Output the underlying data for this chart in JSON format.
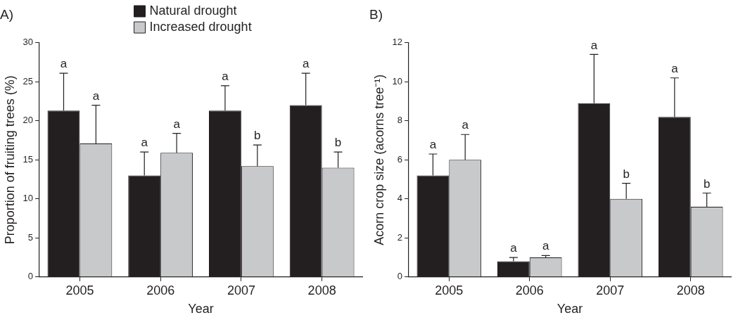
{
  "chart_data": [
    {
      "type": "bar",
      "title": "A)",
      "xlabel": "Year",
      "ylabel": "Proportion of fruiting trees (%)",
      "categories": [
        "2005",
        "2006",
        "2007",
        "2008"
      ],
      "series": [
        {
          "name": "Natural drought",
          "color": "#231f20",
          "values": [
            21.3,
            13.0,
            21.3,
            22.0
          ],
          "errors": [
            [
              21.3,
              26.1
            ],
            [
              13.0,
              16.0
            ],
            [
              21.3,
              24.5
            ],
            [
              22.0,
              26.1
            ]
          ]
        },
        {
          "name": "Increased drought",
          "color": "#c8c9cb",
          "values": [
            17.1,
            15.9,
            14.2,
            14.0
          ],
          "errors": [
            [
              17.1,
              22.0
            ],
            [
              15.9,
              18.4
            ],
            [
              14.2,
              16.9
            ],
            [
              14.0,
              16.0
            ]
          ]
        }
      ],
      "ylim": [
        0,
        30
      ],
      "yticks": [
        0,
        5,
        10,
        15,
        20,
        25,
        30
      ],
      "grid": false,
      "legend": "top",
      "annotations": [
        "a",
        "a",
        "a",
        "a",
        "a",
        "b",
        "a",
        "b"
      ]
    },
    {
      "type": "bar",
      "title": "B)",
      "xlabel": "Year",
      "ylabel": "Acorn crop size (acorns tree⁻¹)",
      "categories": [
        "2005",
        "2006",
        "2007",
        "2008"
      ],
      "series": [
        {
          "color": "#231f20",
          "values": [
            5.2,
            0.8,
            8.9,
            8.2
          ],
          "errors": [
            [
              5.2,
              6.3
            ],
            [
              0.8,
              1.0
            ],
            [
              8.9,
              11.4
            ],
            [
              8.2,
              10.2
            ]
          ]
        },
        {
          "color": "#c8c9cb",
          "values": [
            6.0,
            1.0,
            4.0,
            3.6
          ],
          "errors": [
            [
              6.0,
              7.3
            ],
            [
              1.0,
              1.1
            ],
            [
              4.0,
              4.8
            ],
            [
              3.6,
              4.3
            ]
          ]
        }
      ],
      "ylim": [
        0,
        12
      ],
      "yticks": [
        0,
        2,
        4,
        6,
        8,
        10,
        12
      ],
      "grid": false,
      "legend": false,
      "annotations": [
        "a",
        "a",
        "a",
        "a",
        "a",
        "b",
        "a",
        "b"
      ]
    }
  ]
}
